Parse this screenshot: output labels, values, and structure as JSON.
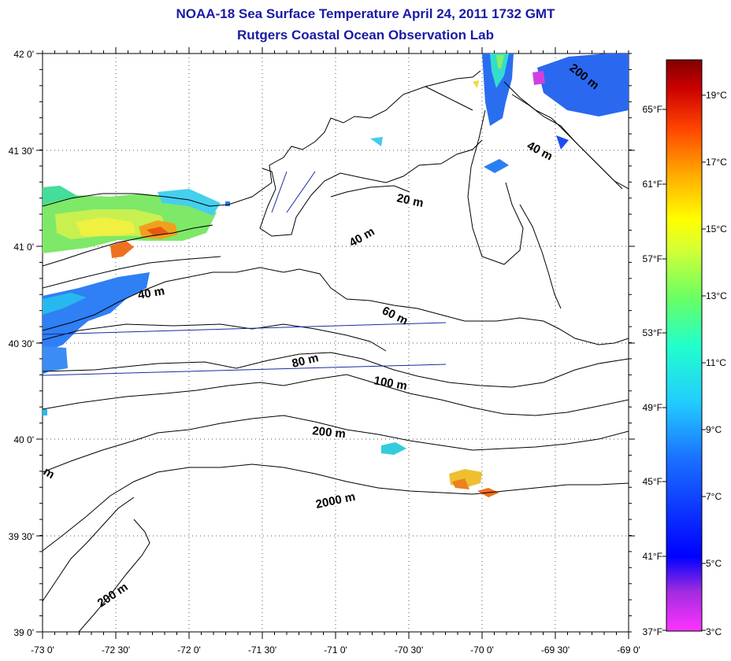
{
  "header": {
    "title": "NOAA-18 Sea Surface Temperature April 24, 2011 1732 GMT",
    "subtitle": "Rutgers Coastal Ocean Observation Lab"
  },
  "map": {
    "lon_labels": [
      "-73 0'",
      "-72 30'",
      "-72 0'",
      "-71 30'",
      "-71 0'",
      "-70 30'",
      "-70 0'",
      "-69 30'",
      "-69 0'"
    ],
    "lat_labels": [
      "42 0'",
      "41 30'",
      "41 0'",
      "40 30'",
      "40 0'",
      "39 30'",
      "39 0'"
    ],
    "isobath_labels": [
      {
        "id": "iso-200-ne",
        "text": "200 m"
      },
      {
        "id": "iso-40-ne",
        "text": "40 m"
      },
      {
        "id": "iso-20",
        "text": "20 m"
      },
      {
        "id": "iso-40-mid",
        "text": "40 m"
      },
      {
        "id": "iso-40-west",
        "text": "40 m"
      },
      {
        "id": "iso-60",
        "text": "60 m"
      },
      {
        "id": "iso-80",
        "text": "80 m"
      },
      {
        "id": "iso-100",
        "text": "100 m"
      },
      {
        "id": "iso-200",
        "text": "200 m"
      },
      {
        "id": "iso-2000",
        "text": "2000 m"
      },
      {
        "id": "iso-200-sw",
        "text": "200 m"
      },
      {
        "id": "iso-m-west",
        "text": "m"
      }
    ]
  },
  "colorbar": {
    "celsius_labels": [
      "19°C",
      "17°C",
      "15°C",
      "13°C",
      "11°C",
      "9°C",
      "7°C",
      "5°C",
      "3°C"
    ],
    "fahrenheit_labels": [
      "65°F",
      "61°F",
      "57°F",
      "53°F",
      "49°F",
      "45°F",
      "41°F",
      "37°F"
    ],
    "colors": [
      "#ff33ff",
      "#7a2bd6",
      "#0000ff",
      "#1a78ff",
      "#22ccff",
      "#22ffcc",
      "#66ff66",
      "#d6ff33",
      "#ffff00",
      "#ffaa00",
      "#ff6600",
      "#ff0000",
      "#c00000",
      "#800000"
    ]
  }
}
